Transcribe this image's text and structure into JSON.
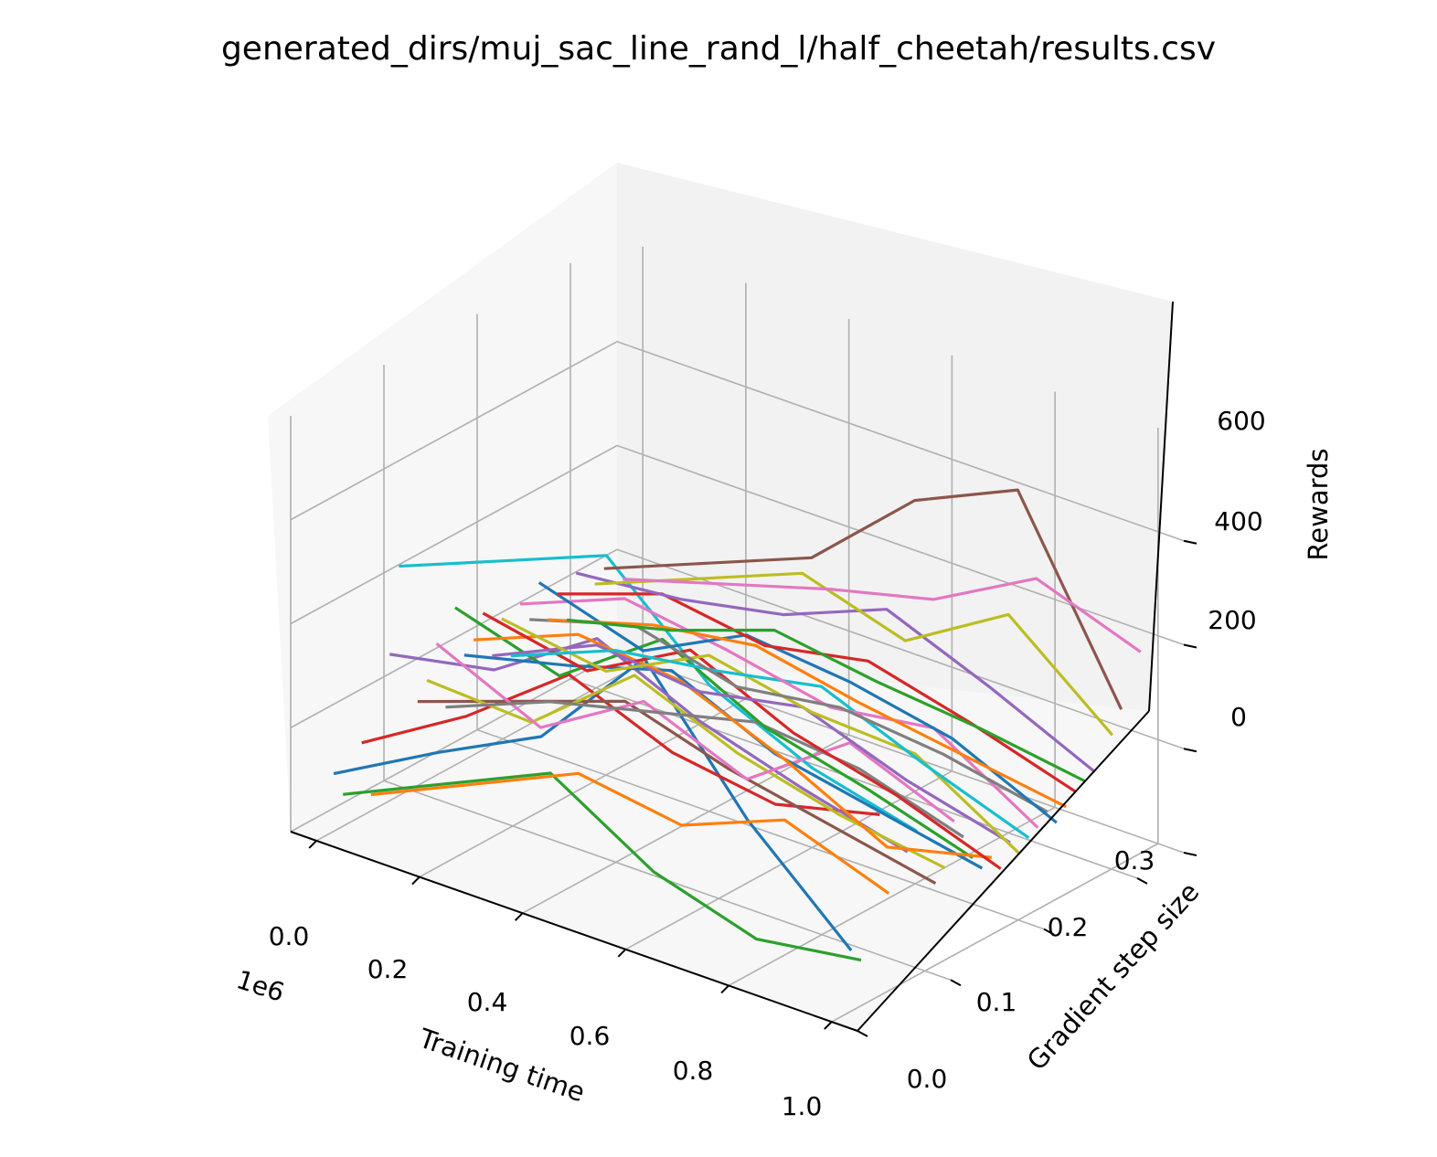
{
  "chart_data": {
    "type": "line",
    "projection": "3d",
    "title": "generated_dirs/muj_sac_line_rand_l/half_cheetah/results.csv",
    "xlabel": "Training time",
    "ylabel": "Gradient step size",
    "zlabel": "Rewards",
    "x_offset_text": "1e6",
    "x_ticks": [
      "0.0",
      "0.2",
      "0.4",
      "0.6",
      "0.8",
      "1.0"
    ],
    "y_ticks": [
      "0.0",
      "0.1",
      "0.2",
      "0.3"
    ],
    "z_ticks": [
      "0",
      "200",
      "400",
      "600"
    ],
    "xlim": [
      -0.05,
      1.05
    ],
    "ylim": [
      0,
      0.35
    ],
    "zlim": [
      0,
      800
    ],
    "grid": true,
    "legend": "none",
    "colors": [
      "#1f77b4",
      "#ff7f0e",
      "#2ca02c",
      "#d62728",
      "#9467bd",
      "#8c564b",
      "#e377c2",
      "#7f7f7f",
      "#bcbd22",
      "#17becf"
    ],
    "series": [
      {
        "x": [
          0.0,
          0.2,
          0.4,
          0.6,
          0.8,
          1.0
        ],
        "y": 0.02,
        "z": [
          110,
          220,
          320,
          540,
          300,
          120
        ],
        "color": "#1f77b4"
      },
      {
        "x": [
          0.0,
          0.2,
          0.4,
          0.6,
          0.8,
          1.0
        ],
        "y": 0.03,
        "z": [
          60,
          150,
          240,
          120,
          60,
          90
        ],
        "color": "#2ca02c"
      },
      {
        "x": [
          0.0,
          0.2,
          0.4,
          0.6,
          0.8,
          1.0
        ],
        "y": 0.05,
        "z": [
          140,
          260,
          410,
          330,
          300,
          350
        ],
        "color": "#d62728"
      },
      {
        "x": [
          0.0,
          0.2,
          0.4,
          0.6,
          0.8,
          1.0
        ],
        "y": 0.06,
        "z": [
          30,
          120,
          210,
          180,
          260,
          190
        ],
        "color": "#ff7f0e"
      },
      {
        "x": [
          0.0,
          0.2,
          0.4,
          0.6,
          0.8,
          1.0
        ],
        "y": 0.08,
        "z": [
          280,
          320,
          450,
          360,
          300,
          250
        ],
        "color": "#9467bd"
      },
      {
        "x": [
          0.0,
          0.2,
          0.4,
          0.6,
          0.8,
          1.0
        ],
        "y": 0.09,
        "z": [
          440,
          520,
          600,
          420,
          330,
          280
        ],
        "color": "#17becf"
      },
      {
        "x": [
          0.0,
          0.2,
          0.4,
          0.6,
          0.8,
          1.0
        ],
        "y": 0.11,
        "z": [
          160,
          230,
          300,
          240,
          200,
          160
        ],
        "color": "#8c564b"
      },
      {
        "x": [
          0.0,
          0.2,
          0.4,
          0.6,
          0.8,
          1.0
        ],
        "y": 0.12,
        "z": [
          190,
          180,
          340,
          260,
          210,
          180
        ],
        "color": "#bcbd22"
      },
      {
        "x": [
          0.0,
          0.2,
          0.4,
          0.6,
          0.8,
          1.0
        ],
        "y": 0.13,
        "z": [
          250,
          160,
          280,
          200,
          340,
          260
        ],
        "color": "#e377c2"
      },
      {
        "x": [
          0.0,
          0.2,
          0.4,
          0.6,
          0.8,
          1.0
        ],
        "y": 0.14,
        "z": [
          120,
          200,
          250,
          300,
          280,
          220
        ],
        "color": "#7f7f7f"
      },
      {
        "x": [
          0.0,
          0.2,
          0.4,
          0.6,
          0.8,
          1.0
        ],
        "y": 0.15,
        "z": [
          300,
          240,
          380,
          280,
          230,
          170
        ],
        "color": "#2ca02c"
      },
      {
        "x": [
          0.0,
          0.2,
          0.4,
          0.6,
          0.8,
          1.0
        ],
        "y": 0.16,
        "z": [
          200,
          250,
          310,
          220,
          180,
          140
        ],
        "color": "#1f77b4"
      },
      {
        "x": [
          0.0,
          0.2,
          0.4,
          0.6,
          0.8,
          1.0
        ],
        "y": 0.17,
        "z": [
          220,
          300,
          280,
          200,
          100,
          150
        ],
        "color": "#ff7f0e"
      },
      {
        "x": [
          0.0,
          0.2,
          0.4,
          0.6,
          0.8,
          1.0
        ],
        "y": 0.18,
        "z": [
          260,
          220,
          330,
          240,
          190,
          120
        ],
        "color": "#d62728"
      },
      {
        "x": [
          0.0,
          0.2,
          0.4,
          0.6,
          0.8,
          1.0
        ],
        "y": 0.19,
        "z": [
          170,
          260,
          240,
          280,
          210,
          160
        ],
        "color": "#9467bd"
      },
      {
        "x": [
          0.0,
          0.2,
          0.4,
          0.6,
          0.8,
          1.0
        ],
        "y": 0.2,
        "z": [
          230,
          200,
          300,
          260,
          250,
          130
        ],
        "color": "#bcbd22"
      },
      {
        "x": [
          0.0,
          0.2,
          0.4,
          0.6,
          0.8,
          1.0
        ],
        "y": 0.21,
        "z": [
          150,
          230,
          260,
          300,
          220,
          150
        ],
        "color": "#17becf"
      },
      {
        "x": [
          0.0,
          0.2,
          0.4,
          0.6,
          0.8,
          1.0
        ],
        "y": 0.22,
        "z": [
          240,
          320,
          290,
          250,
          280,
          160
        ],
        "color": "#e377c2"
      },
      {
        "x": [
          0.0,
          0.2,
          0.4,
          0.6,
          0.8,
          1.0
        ],
        "y": 0.23,
        "z": [
          200,
          260,
          210,
          240,
          220,
          180
        ],
        "color": "#7f7f7f"
      },
      {
        "x": [
          0.0,
          0.2,
          0.4,
          0.6,
          0.8,
          1.0
        ],
        "y": 0.24,
        "z": [
          260,
          200,
          300,
          280,
          240,
          150
        ],
        "color": "#1f77b4"
      },
      {
        "x": [
          0.0,
          0.2,
          0.4,
          0.6,
          0.8,
          1.0
        ],
        "y": 0.25,
        "z": [
          180,
          240,
          270,
          230,
          200,
          170
        ],
        "color": "#ff7f0e"
      },
      {
        "x": [
          0.0,
          0.2,
          0.4,
          0.6,
          0.8,
          1.0
        ],
        "y": 0.26,
        "z": [
          220,
          290,
          260,
          300,
          250,
          190
        ],
        "color": "#d62728"
      },
      {
        "x": [
          0.0,
          0.2,
          0.4,
          0.6,
          0.8,
          1.0
        ],
        "y": 0.27,
        "z": [
          160,
          210,
          280,
          250,
          230,
          200
        ],
        "color": "#2ca02c"
      },
      {
        "x": [
          0.0,
          0.2,
          0.4,
          0.6,
          0.8,
          1.0
        ],
        "y": 0.28,
        "z": [
          240,
          260,
          300,
          380,
          300,
          210
        ],
        "color": "#9467bd"
      },
      {
        "x": [
          0.0,
          0.2,
          0.4,
          0.6,
          0.8,
          1.0
        ],
        "y": 0.3,
        "z": [
          200,
          280,
          360,
          300,
          420,
          260
        ],
        "color": "#bcbd22"
      },
      {
        "x": [
          0.0,
          0.2,
          0.4,
          0.6,
          0.8,
          1.0
        ],
        "y": 0.31,
        "z": [
          220,
          300,
          380,
          560,
          650,
          300
        ],
        "color": "#8c564b"
      },
      {
        "x": [
          0.0,
          0.2,
          0.4,
          0.6,
          0.8,
          1.0
        ],
        "y": 0.33,
        "z": [
          180,
          240,
          300,
          350,
          460,
          390
        ],
        "color": "#e377c2"
      }
    ]
  }
}
